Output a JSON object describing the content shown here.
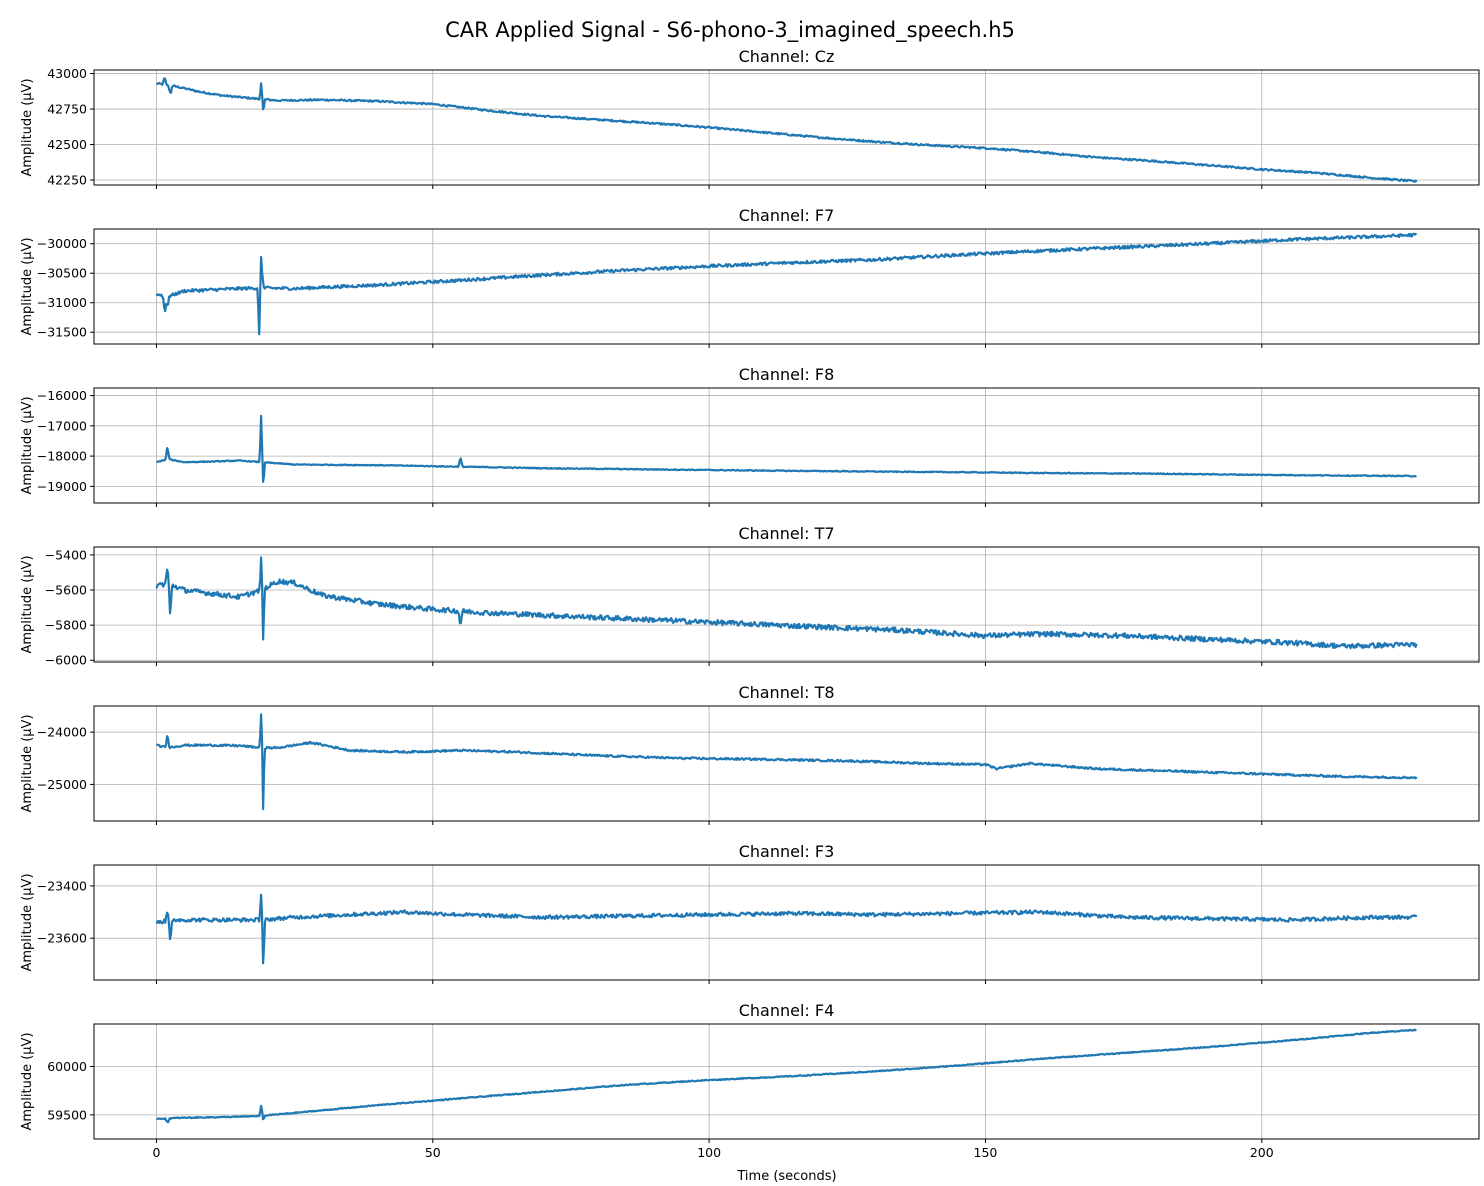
{
  "figure": {
    "title": "CAR Applied Signal - S6-phono-3_imagined_speech.h5",
    "xlabel": "Time (seconds)",
    "ylabel": "Amplitude (µV)"
  },
  "chart_data": [
    {
      "type": "line",
      "title": "Channel: Cz",
      "xlabel": "",
      "ylabel": "Amplitude (µV)",
      "xlim": [
        -11.3,
        239.3
      ],
      "ylim": [
        42215,
        43025
      ],
      "yticks": [
        42250,
        42500,
        42750,
        43000
      ],
      "yticklabels": [
        "42250",
        "42500",
        "42750",
        "43000"
      ],
      "color": "#1f77b4",
      "grid": true,
      "noise": 6,
      "x": [
        0,
        2,
        4,
        8,
        12,
        16,
        19,
        22,
        30,
        40,
        50,
        60,
        70,
        80,
        90,
        100,
        110,
        120,
        130,
        140,
        150,
        160,
        170,
        180,
        190,
        200,
        210,
        220,
        228
      ],
      "y": [
        42930,
        42920,
        42905,
        42870,
        42845,
        42830,
        42820,
        42810,
        42815,
        42805,
        42785,
        42740,
        42700,
        42675,
        42650,
        42620,
        42585,
        42550,
        42520,
        42495,
        42475,
        42445,
        42410,
        42385,
        42355,
        42325,
        42300,
        42265,
        42240
      ],
      "spikes": [
        [
          1.5,
          60
        ],
        [
          2.5,
          -90
        ],
        [
          19,
          140
        ],
        [
          19.3,
          -120
        ]
      ]
    },
    {
      "type": "line",
      "title": "Channel: F7",
      "xlabel": "",
      "ylabel": "Amplitude (µV)",
      "xlim": [
        -11.3,
        239.3
      ],
      "ylim": [
        -31700,
        -29750
      ],
      "yticks": [
        -31500,
        -31000,
        -30500,
        -30000
      ],
      "yticklabels": [
        "−31500",
        "−31000",
        "−30500",
        "−30000"
      ],
      "color": "#1f77b4",
      "grid": true,
      "noise": 25,
      "x": [
        0,
        2,
        5,
        10,
        15,
        19,
        25,
        40,
        55,
        70,
        85,
        100,
        115,
        130,
        145,
        160,
        175,
        190,
        205,
        220,
        228
      ],
      "y": [
        -30850,
        -30900,
        -30800,
        -30780,
        -30760,
        -30750,
        -30760,
        -30700,
        -30620,
        -30530,
        -30450,
        -30380,
        -30320,
        -30270,
        -30190,
        -30120,
        -30060,
        -30000,
        -29930,
        -29880,
        -29850
      ],
      "spikes": [
        [
          1.5,
          -350
        ],
        [
          2,
          -200
        ],
        [
          19,
          650
        ],
        [
          18.6,
          -880
        ]
      ]
    },
    {
      "type": "line",
      "title": "Channel: F8",
      "xlabel": "",
      "ylabel": "Amplitude (µV)",
      "xlim": [
        -11.3,
        239.3
      ],
      "ylim": [
        -19550,
        -15750
      ],
      "yticks": [
        -19000,
        -18000,
        -17000,
        -16000
      ],
      "yticklabels": [
        "−19000",
        "−18000",
        "−17000",
        "−16000"
      ],
      "color": "#1f77b4",
      "grid": true,
      "noise": 15,
      "x": [
        0,
        2,
        5,
        10,
        15,
        19,
        25,
        40,
        55,
        70,
        90,
        110,
        130,
        150,
        160,
        180,
        200,
        220,
        228
      ],
      "y": [
        -18200,
        -18100,
        -18200,
        -18180,
        -18150,
        -18200,
        -18280,
        -18300,
        -18350,
        -18400,
        -18440,
        -18480,
        -18510,
        -18540,
        -18560,
        -18580,
        -18620,
        -18650,
        -18660
      ],
      "spikes": [
        [
          2,
          500
        ],
        [
          19,
          2300
        ],
        [
          19.3,
          -1200
        ],
        [
          55,
          350
        ]
      ]
    },
    {
      "type": "line",
      "title": "Channel: T7",
      "xlabel": "",
      "ylabel": "Amplitude (µV)",
      "xlim": [
        -11.3,
        239.3
      ],
      "ylim": [
        -6010,
        -5355
      ],
      "yticks": [
        -6000,
        -5800,
        -5600,
        -5400
      ],
      "yticklabels": [
        "−6000",
        "−5800",
        "−5600",
        "−5400"
      ],
      "color": "#1f77b4",
      "grid": true,
      "noise": 14,
      "x": [
        0,
        2,
        5,
        10,
        15,
        19,
        22,
        25,
        30,
        40,
        50,
        60,
        75,
        90,
        105,
        120,
        135,
        150,
        160,
        175,
        190,
        205,
        215,
        228
      ],
      "y": [
        -5580,
        -5560,
        -5600,
        -5620,
        -5640,
        -5600,
        -5550,
        -5560,
        -5630,
        -5680,
        -5710,
        -5730,
        -5750,
        -5770,
        -5790,
        -5810,
        -5830,
        -5860,
        -5850,
        -5860,
        -5880,
        -5900,
        -5920,
        -5910
      ],
      "spikes": [
        [
          2,
          110
        ],
        [
          2.5,
          -200
        ],
        [
          19,
          230
        ],
        [
          19.3,
          -390
        ],
        [
          55,
          -110
        ]
      ]
    },
    {
      "type": "line",
      "title": "Channel: T8",
      "xlabel": "",
      "ylabel": "Amplitude (µV)",
      "xlim": [
        -11.3,
        239.3
      ],
      "ylim": [
        -25700,
        -23500
      ],
      "yticks": [
        -25000,
        -24000
      ],
      "yticklabels": [
        "−25000",
        "−24000"
      ],
      "color": "#1f77b4",
      "grid": true,
      "noise": 18,
      "x": [
        0,
        2,
        5,
        10,
        15,
        19,
        22,
        28,
        35,
        45,
        55,
        65,
        80,
        95,
        110,
        125,
        140,
        150,
        152,
        158,
        170,
        185,
        200,
        215,
        228
      ],
      "y": [
        -24250,
        -24300,
        -24250,
        -24250,
        -24260,
        -24300,
        -24300,
        -24200,
        -24350,
        -24380,
        -24350,
        -24380,
        -24450,
        -24500,
        -24520,
        -24550,
        -24600,
        -24620,
        -24700,
        -24600,
        -24700,
        -24750,
        -24800,
        -24850,
        -24870
      ],
      "spikes": [
        [
          2,
          300
        ],
        [
          19,
          950
        ],
        [
          19.3,
          -1350
        ]
      ]
    },
    {
      "type": "line",
      "title": "Channel: F3",
      "xlabel": "",
      "ylabel": "Amplitude (µV)",
      "xlim": [
        -11.3,
        239.3
      ],
      "ylim": [
        -23760,
        -23320
      ],
      "yticks": [
        -23600,
        -23400
      ],
      "yticklabels": [
        "−23600",
        "−23400"
      ],
      "color": "#1f77b4",
      "grid": true,
      "noise": 7,
      "x": [
        0,
        3,
        8,
        14,
        19,
        25,
        35,
        45,
        55,
        70,
        85,
        100,
        115,
        130,
        145,
        160,
        175,
        190,
        205,
        220,
        228
      ],
      "y": [
        -23540,
        -23530,
        -23530,
        -23530,
        -23530,
        -23520,
        -23510,
        -23500,
        -23510,
        -23520,
        -23515,
        -23510,
        -23505,
        -23510,
        -23505,
        -23500,
        -23520,
        -23525,
        -23530,
        -23520,
        -23520
      ],
      "spikes": [
        [
          2,
          60
        ],
        [
          2.5,
          -100
        ],
        [
          19,
          170
        ],
        [
          19.3,
          -210
        ]
      ]
    },
    {
      "type": "line",
      "title": "Channel: F4",
      "xlabel": "",
      "ylabel": "Amplitude (µV)",
      "xlim": [
        -11.3,
        239.3
      ],
      "ylim": [
        59250,
        60440
      ],
      "yticks": [
        59500,
        60000
      ],
      "yticklabels": [
        "59500",
        "60000"
      ],
      "color": "#1f77b4",
      "grid": true,
      "noise": 5,
      "x": [
        0,
        5,
        10,
        15,
        19,
        25,
        40,
        55,
        70,
        85,
        100,
        115,
        130,
        145,
        160,
        175,
        190,
        205,
        220,
        228
      ],
      "y": [
        59460,
        59470,
        59475,
        59480,
        59490,
        59520,
        59600,
        59670,
        59740,
        59810,
        59860,
        59900,
        59950,
        60010,
        60080,
        60140,
        60200,
        60270,
        60350,
        60380
      ],
      "spikes": [
        [
          2,
          -60
        ],
        [
          19,
          130
        ],
        [
          19.3,
          -80
        ]
      ]
    }
  ],
  "xaxis": {
    "ticks": [
      0,
      50,
      100,
      150,
      200
    ],
    "ticklabels": [
      "0",
      "50",
      "100",
      "150",
      "200"
    ]
  }
}
